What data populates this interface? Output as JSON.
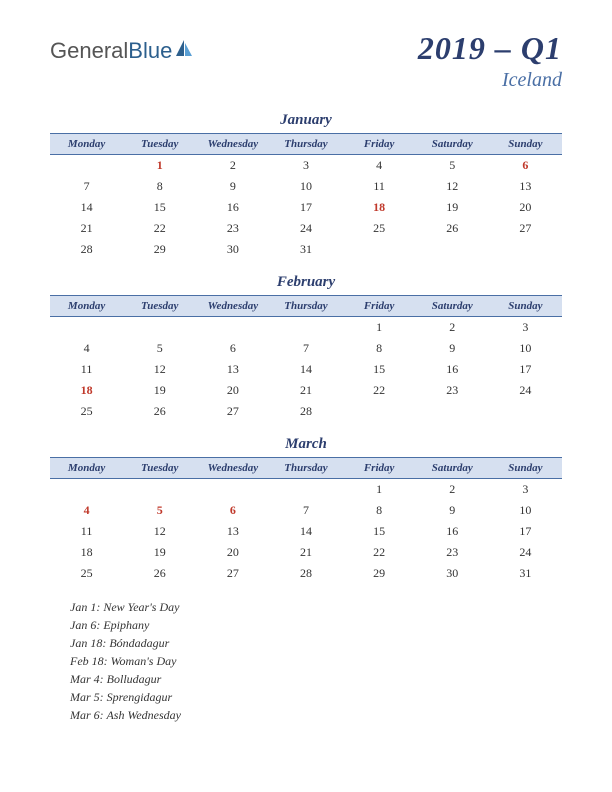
{
  "logo": {
    "part1": "General",
    "part2": "Blue"
  },
  "title": {
    "main": "2019 – Q1",
    "sub": "Iceland"
  },
  "weekdays": [
    "Monday",
    "Tuesday",
    "Wednesday",
    "Thursday",
    "Friday",
    "Saturday",
    "Sunday"
  ],
  "months": [
    {
      "name": "January",
      "rows": [
        [
          "",
          "1",
          "2",
          "3",
          "4",
          "5",
          "6"
        ],
        [
          "7",
          "8",
          "9",
          "10",
          "11",
          "12",
          "13"
        ],
        [
          "14",
          "15",
          "16",
          "17",
          "18",
          "19",
          "20"
        ],
        [
          "21",
          "22",
          "23",
          "24",
          "25",
          "26",
          "27"
        ],
        [
          "28",
          "29",
          "30",
          "31",
          "",
          "",
          ""
        ]
      ],
      "holidays_cells": [
        [
          0,
          1
        ],
        [
          0,
          6
        ],
        [
          2,
          4
        ]
      ]
    },
    {
      "name": "February",
      "rows": [
        [
          "",
          "",
          "",
          "",
          "1",
          "2",
          "3"
        ],
        [
          "4",
          "5",
          "6",
          "7",
          "8",
          "9",
          "10"
        ],
        [
          "11",
          "12",
          "13",
          "14",
          "15",
          "16",
          "17"
        ],
        [
          "18",
          "19",
          "20",
          "21",
          "22",
          "23",
          "24"
        ],
        [
          "25",
          "26",
          "27",
          "28",
          "",
          "",
          ""
        ]
      ],
      "holidays_cells": [
        [
          3,
          0
        ]
      ]
    },
    {
      "name": "March",
      "rows": [
        [
          "",
          "",
          "",
          "",
          "1",
          "2",
          "3"
        ],
        [
          "4",
          "5",
          "6",
          "7",
          "8",
          "9",
          "10"
        ],
        [
          "11",
          "12",
          "13",
          "14",
          "15",
          "16",
          "17"
        ],
        [
          "18",
          "19",
          "20",
          "21",
          "22",
          "23",
          "24"
        ],
        [
          "25",
          "26",
          "27",
          "28",
          "29",
          "30",
          "31"
        ]
      ],
      "holidays_cells": [
        [
          1,
          0
        ],
        [
          1,
          1
        ],
        [
          1,
          2
        ]
      ]
    }
  ],
  "holiday_list": [
    "Jan 1: New Year's Day",
    "Jan 6: Epiphany",
    "Jan 18: Bóndadagur",
    "Feb 18: Woman's Day",
    "Mar 4: Bolludagur",
    "Mar 5: Sprengidagur",
    "Mar 6: Ash Wednesday"
  ],
  "colors": {
    "header_bg": "#d6e0f0",
    "header_border": "#4a6fa5",
    "title_color": "#2c3e6e",
    "subtitle_color": "#4a6fa5",
    "holiday_color": "#c0392b",
    "text_color": "#333333"
  }
}
